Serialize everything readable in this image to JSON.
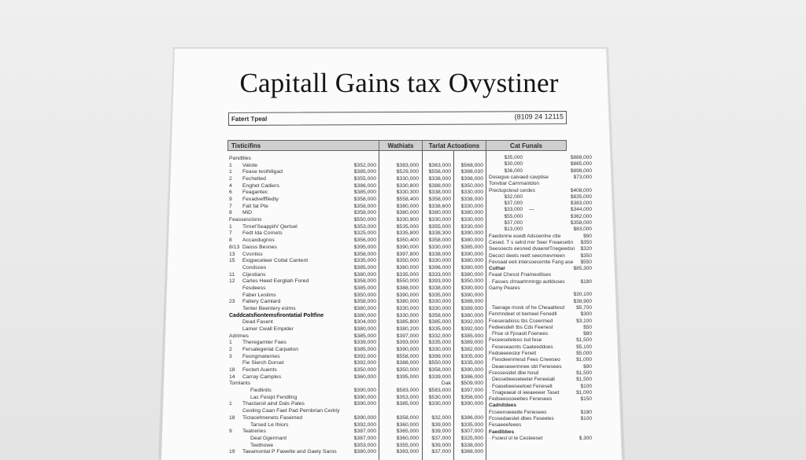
{
  "title": "Capitall Gains tax Ovystiner",
  "info_box": {
    "label": "Fatert Tpeal",
    "code": "(8109 24 12115"
  },
  "headers": [
    "Tisticifins",
    "Wathiats",
    "Tarlat Actoations",
    "Cat Funals"
  ],
  "rows": [
    {
      "n": "",
      "l": "Pandtiles",
      "s": "section",
      "v": [
        "",
        "",
        "",
        ""
      ]
    },
    {
      "n": "1",
      "l": "Vatote",
      "v": [
        "$352,000",
        "$383,000",
        "$363,000",
        "$568,000"
      ]
    },
    {
      "n": "1",
      "l": "Fease lesthiligad",
      "v": [
        "$385,000",
        "$529,000",
        "$556,000",
        "$388,030"
      ]
    },
    {
      "n": "2",
      "l": "Fechelted",
      "v": [
        "$355,000",
        "$330,000",
        "$338,000",
        "$398,000"
      ]
    },
    {
      "n": "4",
      "l": "Enghet Cadiers",
      "v": [
        "$386,000",
        "$330,800",
        "$388,000",
        "$350,000"
      ]
    },
    {
      "n": "6",
      "l": "Feagantec",
      "v": [
        "$385,000",
        "$330,300",
        "$338,000",
        "$330,000"
      ]
    },
    {
      "n": "9",
      "l": "Fexadvefffiedty",
      "v": [
        "$358,000",
        "$558,400",
        "$358,000",
        "$338,000"
      ]
    },
    {
      "n": "7",
      "l": "Falt fat Pte",
      "v": [
        "$358,000",
        "$380,000",
        "$338,600",
        "$330,000"
      ]
    },
    {
      "n": "8",
      "l": "MiD",
      "v": [
        "$358,000",
        "$380,000",
        "$380,000",
        "$380,000"
      ]
    },
    {
      "n": "",
      "l": "Feassesclons",
      "s": "section",
      "v": [
        "$550,000",
        "$330,900",
        "$330,000",
        "$330,000"
      ]
    },
    {
      "n": "1",
      "l": "Tirnet'SeappitV Qertsel",
      "v": [
        "$353,000",
        "$535,000",
        "$355,000",
        "$330,000"
      ]
    },
    {
      "n": "7",
      "l": "Fedt Ida Cornets",
      "v": [
        "$325,000",
        "$335,800",
        "$338,300",
        "$390,000"
      ]
    },
    {
      "n": "8",
      "l": "Accaxdugnos",
      "v": [
        "$356,000",
        "$350,400",
        "$358,000",
        "$380,000"
      ]
    },
    {
      "n": "8/13",
      "l": "Daoss Besnes",
      "v": [
        "$395,000",
        "$390,000",
        "$330,000",
        "$385,000"
      ]
    },
    {
      "n": "13",
      "l": "Cvsntiss",
      "v": [
        "$358,000",
        "$397,800",
        "$338,000",
        "$390,000"
      ]
    },
    {
      "n": "15",
      "l": "Exqpeceteer Cotlal Cantent",
      "v": [
        "$335,000",
        "$350,000",
        "$330,000",
        "$380,000"
      ]
    },
    {
      "n": "",
      "l": "Condsces",
      "s": "indent",
      "v": [
        "$385,000",
        "$380,000",
        "$396,000",
        "$380,000"
      ]
    },
    {
      "n": "11",
      "l": "Cijestians",
      "v": [
        "$380,000",
        "$335,000",
        "$333,000",
        "$380,000"
      ]
    },
    {
      "n": "12",
      "l": "Carles Heed Eergliah Fored",
      "v": [
        "$358,000",
        "$550,000",
        "$393,000",
        "$350,000"
      ]
    },
    {
      "n": "",
      "l": "Fesdeess",
      "s": "indent",
      "v": [
        "$385,000",
        "$388,000",
        "$338,000",
        "$390,000"
      ]
    },
    {
      "n": "",
      "l": "Faber Leslims",
      "s": "indent",
      "v": [
        "$350,000",
        "$390,000",
        "$335,000",
        "$390,000"
      ]
    },
    {
      "n": "23",
      "l": "Faltery Camlard",
      "v": [
        "$358,000",
        "$380,000",
        "$330,000",
        "$388,000"
      ]
    },
    {
      "n": "",
      "l": "Tenter Beentery eslms",
      "s": "indent",
      "v": [
        "$380,000",
        "$330,000",
        "$330,000",
        "$389,000"
      ]
    },
    {
      "n": "",
      "l": "Caddcatsfiontemsfirontatial Poltfine",
      "s": "bold",
      "v": [
        "$380,000",
        "$330,000",
        "$358,000",
        "$380,000"
      ]
    },
    {
      "n": "",
      "l": "Dead Fasent",
      "s": "indent",
      "v": [
        "$304,000",
        "$385,800",
        "$385,000",
        "$392,000"
      ]
    },
    {
      "n": "",
      "l": "Lamer Cwall Empider",
      "s": "indent",
      "v": [
        "$380,000",
        "$380,200",
        "$335,000",
        "$392,000"
      ]
    },
    {
      "n": "",
      "l": "Adrimes",
      "s": "section",
      "v": [
        "$385,000",
        "$397,000",
        "$332,000",
        "$385,000"
      ]
    },
    {
      "n": "1",
      "l": "Theregarnler Faes",
      "v": [
        "$339,000",
        "$393,000",
        "$335,000",
        "$389,000"
      ]
    },
    {
      "n": "2",
      "l": "Fersalegeriat Carpation",
      "v": [
        "$385,000",
        "$390,000",
        "$330,000",
        "$382,000"
      ]
    },
    {
      "n": "3",
      "l": "Feongmaterries",
      "v": [
        "$392,000",
        "$558,000",
        "$399,000",
        "$305,000"
      ]
    },
    {
      "n": "",
      "l": "Fie Sierch Dorset",
      "s": "indent",
      "v": [
        "$392,000",
        "$388,000",
        "$550,000",
        "$335,000"
      ]
    },
    {
      "n": "18",
      "l": "Fectert Auents",
      "v": [
        "$350,000",
        "$350,000",
        "$358,000",
        "$390,000"
      ]
    },
    {
      "n": "14",
      "l": "Carray Camples",
      "v": [
        "$360,000",
        "$395,000",
        "$339,000",
        "$386,000"
      ]
    },
    {
      "n": "",
      "l": "Tomlants",
      "s": "section",
      "v": [
        "",
        "",
        "Dak",
        "$509,000"
      ]
    },
    {
      "n": "",
      "l": "Fiedlinits",
      "s": "indent2",
      "v": [
        "$390,000",
        "$583,000",
        "$583,000",
        "$397,000"
      ]
    },
    {
      "n": "",
      "l": "Lac Fesipt Fendling",
      "s": "indent2",
      "v": [
        "$390,000",
        "$353,000",
        "$530,000",
        "$356,000"
      ]
    },
    {
      "n": "1",
      "l": "Thactaroil aind Dals Pales",
      "v": [
        "$390,000",
        "$385,000",
        "$330,000",
        "$390,000"
      ]
    },
    {
      "n": "",
      "l": "Ceoling Caan Faet Pad Pernbrian Cerkty",
      "s": "indent",
      "v": [
        "",
        "",
        "",
        ""
      ]
    },
    {
      "n": "18",
      "l": "Tictacehnenets Fasemed",
      "v": [
        "$390,000",
        "$358,000",
        "$32,000",
        "$386,000"
      ]
    },
    {
      "n": "",
      "l": "Tarsed Le Ihiors",
      "s": "indent2",
      "v": [
        "$392,000",
        "$360,000",
        "$39,000",
        "$335,000"
      ]
    },
    {
      "n": "9",
      "l": "Teatreries",
      "v": [
        "$387,000",
        "$365,000",
        "$39,000",
        "$307,000"
      ]
    },
    {
      "n": "",
      "l": "Deal Ggermant",
      "s": "indent2",
      "v": [
        "$387,000",
        "$360,000",
        "$37,000",
        "$325,000"
      ]
    },
    {
      "n": "",
      "l": "Teethowe",
      "s": "indent2",
      "v": [
        "$353,000",
        "$355,000",
        "$39,000",
        "$338,000"
      ]
    },
    {
      "n": "19",
      "l": "Taeamontal P Fawelte and Gaely Saros",
      "v": [
        "$380,000",
        "$383,000",
        "$37,000",
        "$368,000"
      ]
    }
  ],
  "right": [
    {
      "a": "$35,000",
      "b": "$888,000"
    },
    {
      "a": "$30,000",
      "b": "$885,000"
    },
    {
      "a": "$36,000",
      "b": "$898,000"
    },
    {
      "t": "Dosegue caivaed cavptise",
      "b": "$73,000"
    },
    {
      "t": "Tonvbar Cammantdon"
    },
    {
      "t": "Prectupclesd cerdes",
      "b": "$408,000"
    },
    {
      "a": "$32,000",
      "b": "$835,000"
    },
    {
      "a": "$37,000",
      "b": "$383,000"
    },
    {
      "a": "$33,000",
      "b": "$344,000",
      "arrow": "—"
    },
    {
      "a": "$55,000",
      "b": "$362,000"
    },
    {
      "a": "$37,000",
      "b": "$358,000"
    },
    {
      "a": "$13,000",
      "b": "$83,000"
    },
    {
      "t": "Faedonne esedt Adsoenlne ctte",
      "b": "$90"
    },
    {
      "t": "Cesed. T s selrd rrer Seer Freaesetin",
      "b": "$350"
    },
    {
      "t": "Seesoects eesned dvaeretTnegeedsn",
      "b": "$320"
    },
    {
      "t": "Decoct deets reett seecmevmeen",
      "b": "$350"
    },
    {
      "t": "Fevoaat eeti intersoecemte Fang ase",
      "b": "$550"
    },
    {
      "t": "Cuthar",
      "bold": true,
      "b": "$85,300"
    },
    {
      "t": "Feaat Chesst Fnameotlises"
    },
    {
      "t": "· Fasses chraartnmngp autlduses",
      "b": "$180"
    },
    {
      "t": "Gamy Peares"
    },
    {
      "b": "$30,100"
    },
    {
      "b": "$38,900"
    },
    {
      "t": "· Taerage mosk of he Cheaattesd",
      "b": "$5,700"
    },
    {
      "t": "Fenmndeet ot bemeel Fenedll",
      "b": "$300"
    },
    {
      "t": "Foeseradioss tbs Cceermed",
      "b": "$3,100"
    },
    {
      "t": "Fedeesdeh tbs Cds Feenesl",
      "b": "$50"
    },
    {
      "t": "· Fhse ol Fpsaoll Foenees",
      "b": "$80"
    },
    {
      "t": "Feceeseteteos tsd fese",
      "b": "$1,500"
    },
    {
      "t": "· Feseseaonts Caateeddoes",
      "b": "$5,100"
    },
    {
      "t": "Fedoeeeestor Fenetl",
      "b": "$5,000"
    },
    {
      "t": "· Fiesdeenmesd Fees Cneeseo",
      "b": "$1,000"
    },
    {
      "t": "· Deaeseeennnee sbt Fenesees",
      "b": "$90"
    },
    {
      "t": "Fcessesidet dbe hosd",
      "b": "$1,500"
    },
    {
      "t": "· Dessebeeseleetel Feneeiall",
      "b": "$1,500"
    },
    {
      "t": "· Foasebeeseetoet Fenesell",
      "b": "$100"
    },
    {
      "t": "· Tnageaeal ol ieeaeeeer Taset",
      "b": "$1,000"
    },
    {
      "t": "Fedseesooeebes Fenesees",
      "b": "$150"
    },
    {
      "t": "Cadnitdees",
      "bold": true
    },
    {
      "t": "Fcseenoeeede Fenesees",
      "b": "$180"
    },
    {
      "t": "Fcosedaeslet dbes Feseeles",
      "b": "$100"
    },
    {
      "t": "Fesaeeefeees"
    },
    {
      "t": "Faedibbes",
      "bold": true
    },
    {
      "t": "· Fsoesl ol te Cesteeset",
      "b": "$.300"
    }
  ]
}
